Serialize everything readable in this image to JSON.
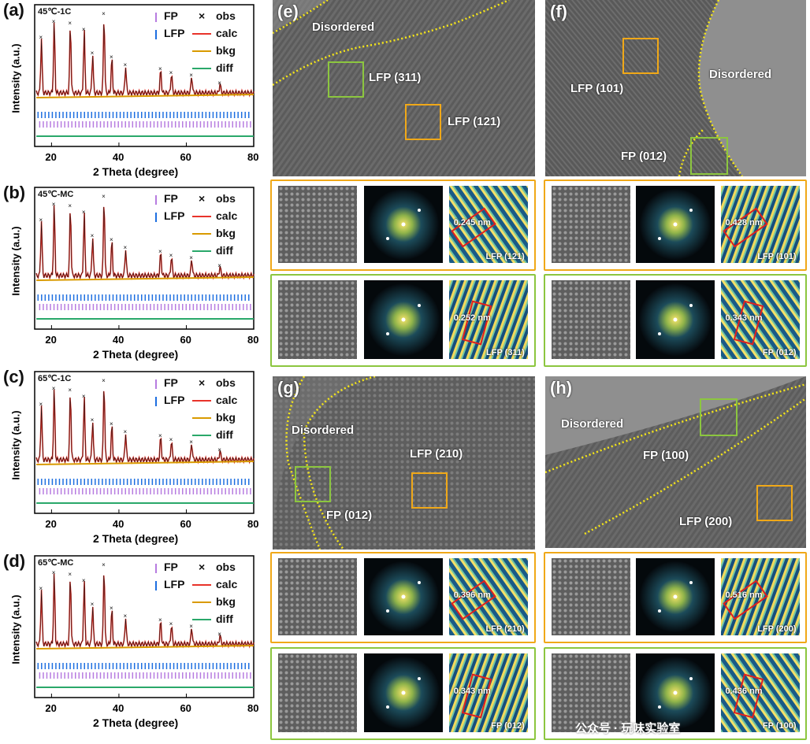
{
  "xrd_common": {
    "ylabel": "Intensity (a.u.)",
    "xlabel": "2 Theta (degree)",
    "ticks": [
      "20",
      "40",
      "60",
      "80"
    ],
    "legend": {
      "fp": "FP",
      "lfp": "LFP",
      "obs": "obs",
      "calc": "calc",
      "bkg": "bkg",
      "diff": "diff"
    },
    "obs_marker": "×"
  },
  "panels": [
    {
      "label": "(a)",
      "sample": "45℃-1C"
    },
    {
      "label": "(b)",
      "sample": "45℃-MC"
    },
    {
      "label": "(c)",
      "sample": "65℃-1C"
    },
    {
      "label": "(d)",
      "sample": "65℃-MC"
    }
  ],
  "colors": {
    "calc": "#e8332a",
    "bkg": "#d99a00",
    "diff": "#2aa86a",
    "fp": "#b77ce0",
    "lfp": "#1e6fe0",
    "orange": "#f0a818",
    "green": "#8cc63f"
  },
  "chart_data": [
    {
      "type": "line",
      "title": "45℃-1C",
      "xlabel": "2 Theta (degree)",
      "ylabel": "Intensity (a.u.)",
      "xlim": [
        15,
        80
      ],
      "series": [
        "obs",
        "calc",
        "bkg",
        "diff"
      ],
      "peaks_2theta": [
        17,
        20.8,
        25.6,
        29.7,
        32.2,
        35.6,
        37.9,
        42,
        52.4,
        55.6,
        61.6,
        70
      ]
    },
    {
      "type": "line",
      "title": "45℃-MC",
      "xlabel": "2 Theta (degree)",
      "ylabel": "Intensity (a.u.)",
      "xlim": [
        15,
        80
      ],
      "series": [
        "obs",
        "calc",
        "bkg",
        "diff"
      ],
      "peaks_2theta": [
        17,
        20.8,
        25.6,
        29.7,
        32.2,
        35.6,
        37.9,
        42,
        52.4,
        55.6,
        61.6,
        70
      ]
    },
    {
      "type": "line",
      "title": "65℃-1C",
      "xlabel": "2 Theta (degree)",
      "ylabel": "Intensity (a.u.)",
      "xlim": [
        15,
        80
      ],
      "series": [
        "obs",
        "calc",
        "bkg",
        "diff"
      ],
      "peaks_2theta": [
        17,
        20.8,
        25.6,
        29.7,
        32.2,
        35.6,
        37.9,
        42,
        52.4,
        55.6,
        61.6,
        70
      ]
    },
    {
      "type": "line",
      "title": "65℃-MC",
      "xlabel": "2 Theta (degree)",
      "ylabel": "Intensity (a.u.)",
      "xlim": [
        15,
        80
      ],
      "series": [
        "obs",
        "calc",
        "bkg",
        "diff"
      ],
      "peaks_2theta": [
        17,
        20.8,
        25.6,
        29.7,
        32.2,
        35.6,
        37.9,
        42,
        52.4,
        55.6,
        61.6,
        70
      ]
    }
  ],
  "tem": {
    "e": {
      "letter": "(e)",
      "disordered": "Disordered",
      "box1": "LFP (311)",
      "box2": "LFP (121)",
      "row1": {
        "d": "0.245 nm",
        "plane": "LFP (121)"
      },
      "row2": {
        "d": "0.252 nm",
        "plane": "LFP (311)"
      }
    },
    "f": {
      "letter": "(f)",
      "disordered": "Disordered",
      "box1": "LFP (101)",
      "box2": "FP (012)",
      "row1": {
        "d": "0.428 nm",
        "plane": "LFP (101)"
      },
      "row2": {
        "d": "0.343 nm",
        "plane": "FP (012)"
      }
    },
    "g": {
      "letter": "(g)",
      "disordered": "Disordered",
      "box1": "LFP (210)",
      "box2": "FP (012)",
      "row1": {
        "d": "0.396 nm",
        "plane": "LFP (210)"
      },
      "row2": {
        "d": "0.343 nm",
        "plane": "FP (012)"
      }
    },
    "h": {
      "letter": "(h)",
      "disordered": "Disordered",
      "box1": "FP (100)",
      "box2": "LFP (200)",
      "row1": {
        "d": "0.516 nm",
        "plane": "LFP (200)"
      },
      "row2": {
        "d": "0.436 nm",
        "plane": "FP (100)"
      }
    }
  },
  "watermark": "公众号 · 玩味实验室"
}
